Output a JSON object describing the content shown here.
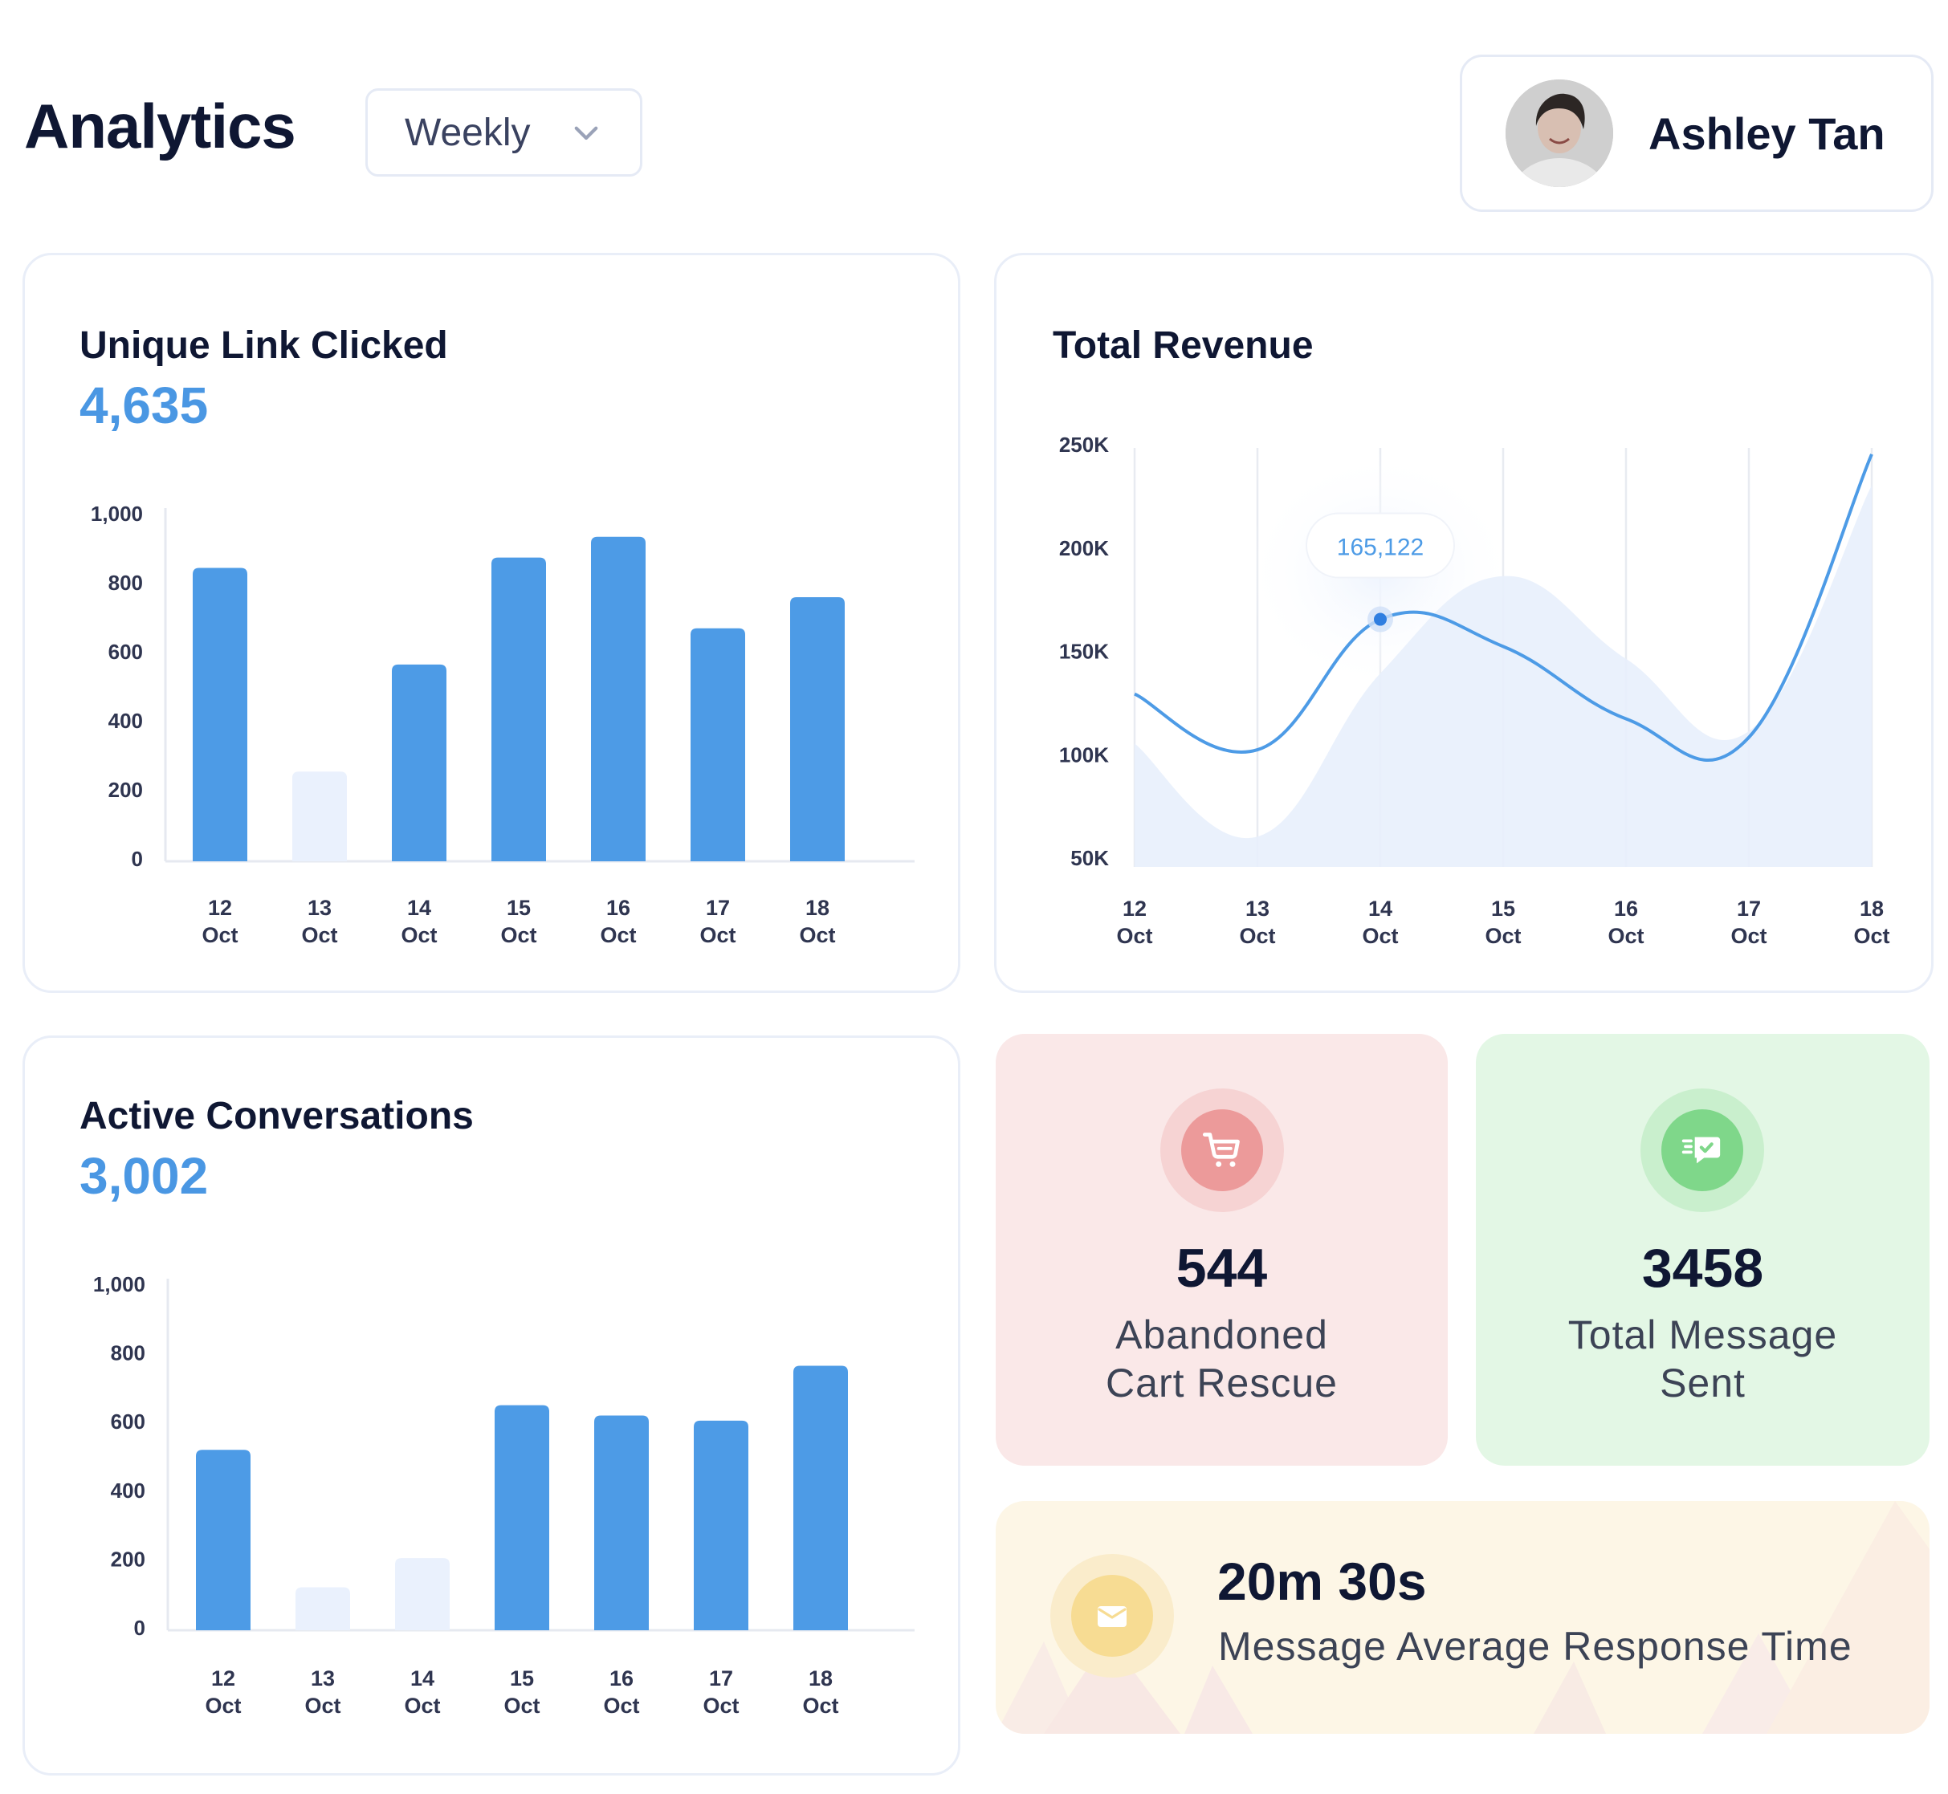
{
  "header": {
    "title": "Analytics",
    "period": "Weekly"
  },
  "user": {
    "name": "Ashley Tan"
  },
  "unique_link": {
    "title": "Unique Link Clicked",
    "value": "4,635"
  },
  "total_revenue": {
    "title": "Total Revenue",
    "tooltip": "165,122"
  },
  "active_conv": {
    "title": "Active Conversations",
    "value": "3,002"
  },
  "abandoned": {
    "number": "544",
    "label_line1": "Abandoned",
    "label_line2": "Cart Rescue",
    "bg_color": "#fae8e8",
    "icon_color": "#ec9a9a"
  },
  "messages_sent": {
    "number": "3458",
    "label_line1": "Total Message",
    "label_line2": "Sent",
    "bg_color": "#e3f7e5",
    "icon_color": "#7fd78a"
  },
  "response_time": {
    "number": "20m 30s",
    "label": "Message Average Response Time",
    "bg_color": "#fdf6e6",
    "icon_color": "#f7dc93"
  },
  "colors": {
    "accent": "#4d9be6",
    "faded_bar": "#eaf1fd",
    "area_fill": "#e8effc"
  },
  "chart_data": [
    {
      "name": "unique_link",
      "type": "bar",
      "categories": [
        [
          "12",
          "Oct"
        ],
        [
          "13",
          "Oct"
        ],
        [
          "14",
          "Oct"
        ],
        [
          "15",
          "Oct"
        ],
        [
          "16",
          "Oct"
        ],
        [
          "17",
          "Oct"
        ],
        [
          "18",
          "Oct"
        ]
      ],
      "values": [
        850,
        260,
        570,
        880,
        940,
        675,
        765
      ],
      "highlighted": [
        true,
        false,
        true,
        true,
        true,
        true,
        true
      ],
      "ylim": [
        0,
        1000
      ],
      "yticks": [
        "0",
        "200",
        "400",
        "600",
        "800",
        "1,000"
      ]
    },
    {
      "name": "total_revenue",
      "type": "area",
      "categories": [
        [
          "12",
          "Oct"
        ],
        [
          "13",
          "Oct"
        ],
        [
          "14",
          "Oct"
        ],
        [
          "15",
          "Oct"
        ],
        [
          "16",
          "Oct"
        ],
        [
          "17",
          "Oct"
        ],
        [
          "18",
          "Oct"
        ]
      ],
      "series": [
        {
          "values": [
            129000,
            102000,
            165122,
            152000,
            117000,
            108000,
            245000
          ]
        },
        {
          "values": [
            105000,
            60000,
            139000,
            186000,
            146000,
            111000,
            230000
          ]
        }
      ],
      "highlight_index": 2,
      "ylim": [
        50000,
        250000
      ],
      "yticks": [
        "50K",
        "100K",
        "150K",
        "200K",
        "250K"
      ]
    },
    {
      "name": "active_conv",
      "type": "bar",
      "categories": [
        [
          "12",
          "Oct"
        ],
        [
          "13",
          "Oct"
        ],
        [
          "14",
          "Oct"
        ],
        [
          "15",
          "Oct"
        ],
        [
          "16",
          "Oct"
        ],
        [
          "17",
          "Oct"
        ],
        [
          "18",
          "Oct"
        ]
      ],
      "values": [
        525,
        125,
        210,
        655,
        625,
        610,
        770
      ],
      "highlighted": [
        true,
        false,
        false,
        true,
        true,
        true,
        true
      ],
      "ylim": [
        0,
        1000
      ],
      "yticks": [
        "0",
        "200",
        "400",
        "600",
        "800",
        "1,000"
      ]
    }
  ]
}
